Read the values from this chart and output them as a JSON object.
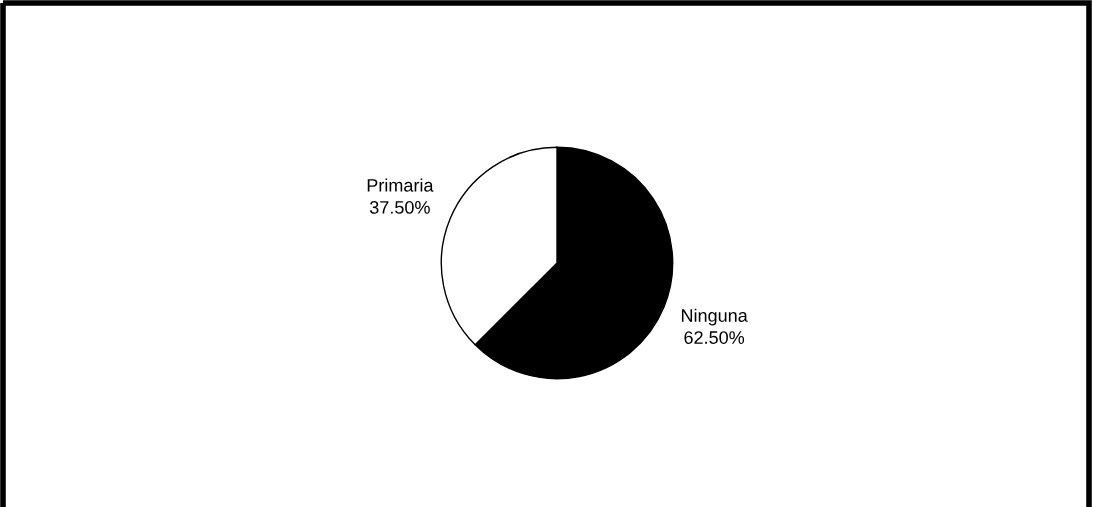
{
  "chart_data": {
    "type": "pie",
    "categories": [
      "Ninguna",
      "Primaria"
    ],
    "values": [
      62.5,
      37.5
    ],
    "colors": [
      "#000000",
      "#ffffff"
    ],
    "value_labels": [
      "62.50%",
      "37.50%"
    ]
  }
}
